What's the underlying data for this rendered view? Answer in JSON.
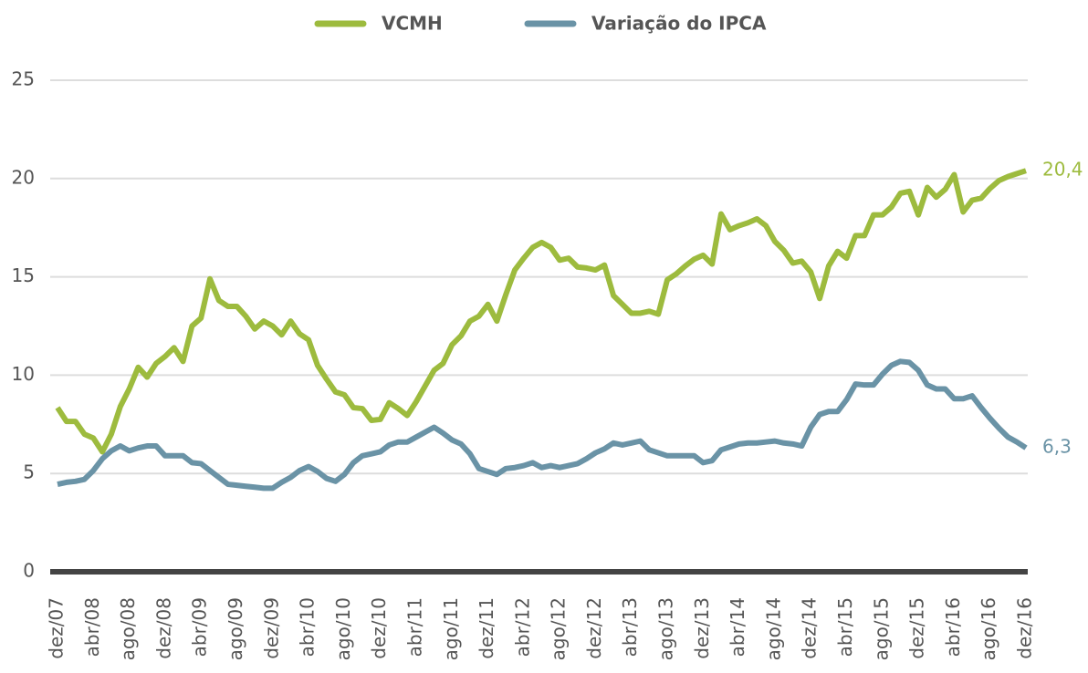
{
  "chart_data": {
    "type": "line",
    "categories": [
      "dez/07",
      null,
      null,
      null,
      "abr/08",
      null,
      null,
      null,
      "ago/08",
      null,
      null,
      null,
      "dez/08",
      null,
      null,
      null,
      "abr/09",
      null,
      null,
      null,
      "ago/09",
      null,
      null,
      null,
      "dez/09",
      null,
      null,
      null,
      "abr/10",
      null,
      null,
      null,
      "ago/10",
      null,
      null,
      null,
      "dez/10",
      null,
      null,
      null,
      "abr/11",
      null,
      null,
      null,
      "ago/11",
      null,
      null,
      null,
      "dez/11",
      null,
      null,
      null,
      "abr/12",
      null,
      null,
      null,
      "ago/12",
      null,
      null,
      null,
      "dez/12",
      null,
      null,
      null,
      "abr/13",
      null,
      null,
      null,
      "ago/13",
      null,
      null,
      null,
      "dez/13",
      null,
      null,
      null,
      "abr/14",
      null,
      null,
      null,
      "ago/14",
      null,
      null,
      null,
      "dez/14",
      null,
      null,
      null,
      "abr/15",
      null,
      null,
      null,
      "ago/15",
      null,
      null,
      null,
      "dez/15",
      null,
      null,
      null,
      "abr/16",
      null,
      null,
      null,
      "ago/16",
      null,
      null,
      null,
      "dez/16"
    ],
    "series": [
      {
        "name": "VCMH",
        "color": "#9dbb3e",
        "end_label": "20,4",
        "values": [
          8.35,
          7.65,
          7.65,
          7.0,
          6.8,
          6.1,
          7.0,
          8.4,
          9.3,
          10.4,
          9.9,
          10.6,
          10.95,
          11.4,
          10.7,
          12.5,
          12.9,
          14.9,
          13.8,
          13.5,
          13.5,
          13.0,
          12.35,
          12.75,
          12.5,
          12.05,
          12.75,
          12.1,
          11.8,
          10.5,
          9.8,
          9.15,
          9.0,
          8.35,
          8.3,
          7.7,
          7.75,
          8.6,
          8.3,
          7.95,
          8.65,
          9.45,
          10.25,
          10.6,
          11.55,
          12.0,
          12.75,
          13.0,
          13.6,
          12.75,
          14.1,
          15.35,
          15.95,
          16.5,
          16.75,
          16.5,
          15.85,
          15.95,
          15.5,
          15.45,
          15.35,
          15.6,
          14.05,
          13.6,
          13.15,
          13.15,
          13.25,
          13.1,
          14.85,
          15.15,
          15.55,
          15.9,
          16.1,
          15.65,
          18.2,
          17.4,
          17.6,
          17.75,
          17.95,
          17.6,
          16.8,
          16.35,
          15.7,
          15.8,
          15.25,
          13.9,
          15.55,
          16.3,
          15.95,
          17.1,
          17.1,
          18.15,
          18.15,
          18.55,
          19.25,
          19.35,
          18.15,
          19.55,
          19.05,
          19.45,
          20.2,
          18.3,
          18.9,
          19.0,
          19.5,
          19.9,
          20.1,
          20.25,
          20.4
        ]
      },
      {
        "name": "Variação do IPCA",
        "color": "#6a93a6",
        "end_label": "6,3",
        "values": [
          4.45,
          4.55,
          4.6,
          4.7,
          5.15,
          5.75,
          6.15,
          6.4,
          6.15,
          6.3,
          6.4,
          6.4,
          5.9,
          5.9,
          5.9,
          5.55,
          5.5,
          5.15,
          4.8,
          4.45,
          4.4,
          4.35,
          4.3,
          4.25,
          4.25,
          4.55,
          4.8,
          5.15,
          5.35,
          5.1,
          4.75,
          4.6,
          4.95,
          5.55,
          5.9,
          6.0,
          6.1,
          6.45,
          6.6,
          6.6,
          6.85,
          7.1,
          7.35,
          7.05,
          6.7,
          6.5,
          6.0,
          5.25,
          5.1,
          4.95,
          5.25,
          5.3,
          5.4,
          5.55,
          5.3,
          5.4,
          5.3,
          5.4,
          5.5,
          5.75,
          6.05,
          6.25,
          6.55,
          6.45,
          6.55,
          6.65,
          6.2,
          6.05,
          5.9,
          5.9,
          5.9,
          5.9,
          5.55,
          5.65,
          6.2,
          6.35,
          6.5,
          6.55,
          6.55,
          6.6,
          6.65,
          6.55,
          6.5,
          6.4,
          7.35,
          8.0,
          8.15,
          8.15,
          8.75,
          9.55,
          9.5,
          9.5,
          10.05,
          10.5,
          10.7,
          10.65,
          10.25,
          9.5,
          9.3,
          9.3,
          8.8,
          8.8,
          8.95,
          8.35,
          7.8,
          7.3,
          6.85,
          6.6,
          6.3
        ]
      }
    ],
    "ylim": [
      0,
      25
    ],
    "yticks": [
      0,
      5,
      10,
      15,
      20,
      25
    ],
    "grid": true,
    "legend": "top"
  }
}
